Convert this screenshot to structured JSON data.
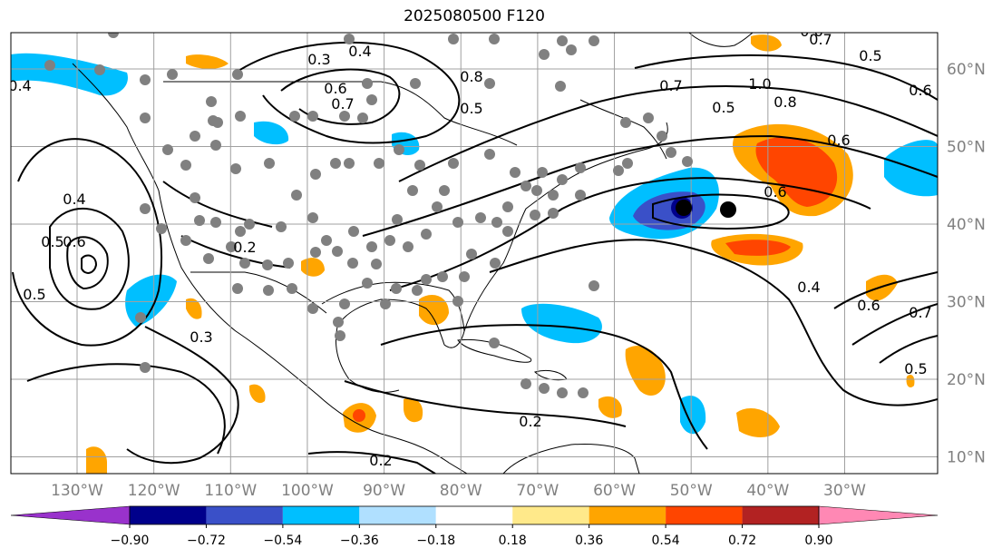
{
  "title": "2025080500 F120",
  "map": {
    "lon_labels": [
      {
        "lon": -130,
        "label": "130°W"
      },
      {
        "lon": -120,
        "label": "120°W"
      },
      {
        "lon": -110,
        "label": "110°W"
      },
      {
        "lon": -100,
        "label": "100°W"
      },
      {
        "lon": -90,
        "label": "90°W"
      },
      {
        "lon": -80,
        "label": "80°W"
      },
      {
        "lon": -70,
        "label": "70°W"
      },
      {
        "lon": -60,
        "label": "60°W"
      },
      {
        "lon": -50,
        "label": "50°W"
      },
      {
        "lon": -40,
        "label": "40°W"
      },
      {
        "lon": -30,
        "label": "30°W"
      }
    ],
    "lat_labels": [
      {
        "lat": 60,
        "label": "60°N"
      },
      {
        "lat": 50,
        "label": "50°N"
      },
      {
        "lat": 40,
        "label": "40°N"
      },
      {
        "lat": 30,
        "label": "30°N"
      },
      {
        "lat": 20,
        "label": "20°N"
      },
      {
        "lat": 10,
        "label": "10°N"
      }
    ],
    "contour_labels": [
      "0.3",
      "0.4",
      "0.6",
      "0.7",
      "0.5",
      "0.8",
      "1.0",
      "0.2",
      "0.6",
      "0.7",
      "0.5",
      "0.4",
      "0.6",
      "0.5",
      "0.8",
      "0.4",
      "0.3",
      "0.5",
      "0.6",
      "0.2",
      "0.2",
      "0.4",
      "0.5",
      "0.6",
      "0.7",
      "0.6",
      "0.5",
      "0.6",
      "0.7"
    ],
    "colors": {
      "contour": "#000000",
      "gridline": "#a0a0a0",
      "dots": "#808080",
      "land": "#ffffff"
    }
  },
  "colorbar": {
    "ticks": [
      "−0.90",
      "−0.72",
      "−0.54",
      "−0.36",
      "−0.18",
      "0.18",
      "0.36",
      "0.54",
      "0.72",
      "0.90"
    ],
    "colors": [
      "#9932cc",
      "#00008b",
      "#3a50c8",
      "#00bfff",
      "#b0e0ff",
      "#ffffff",
      "#ffe98a",
      "#ffa500",
      "#ff4500",
      "#b22222",
      "#ff88b4"
    ]
  }
}
